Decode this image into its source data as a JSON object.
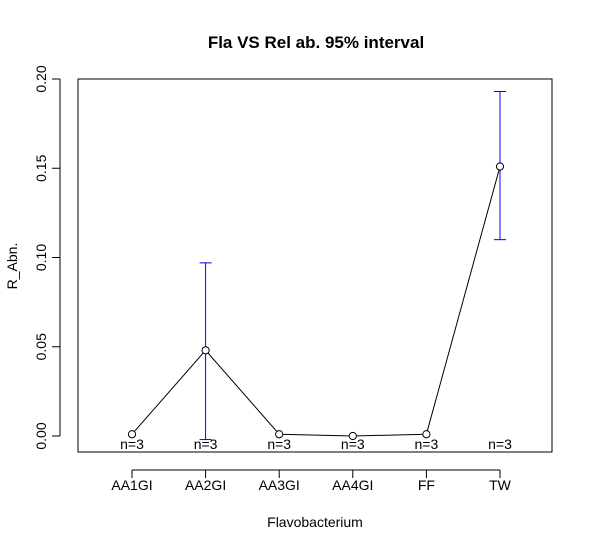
{
  "chart_data": {
    "type": "line",
    "title": "Fla VS Rel ab. 95% interval",
    "xlabel": "Flavobacterium",
    "ylabel": "R_Abn.",
    "categories": [
      "AA1GI",
      "AA2GI",
      "AA3GI",
      "AA4GI",
      "FF",
      "TW"
    ],
    "series": [
      {
        "values": [
          0.001,
          0.048,
          0.001,
          0.0,
          0.001,
          0.151
        ],
        "ci_lower": [
          0.001,
          -0.002,
          0.001,
          0.0,
          0.001,
          0.11
        ],
        "ci_upper": [
          0.001,
          0.097,
          0.001,
          0.0,
          0.001,
          0.193
        ]
      }
    ],
    "n_labels": [
      "n=3",
      "n=3",
      "n=3",
      "n=3",
      "n=3",
      "n=3"
    ],
    "ylim": [
      -0.01,
      0.2
    ],
    "yticks": [
      0.0,
      0.05,
      0.1,
      0.15,
      0.2
    ],
    "ytick_labels": [
      "0.00",
      "0.05",
      "0.10",
      "0.15",
      "0.20"
    ],
    "grid": false,
    "line_color": "#000000",
    "errorbar_color": "#0000ff"
  }
}
